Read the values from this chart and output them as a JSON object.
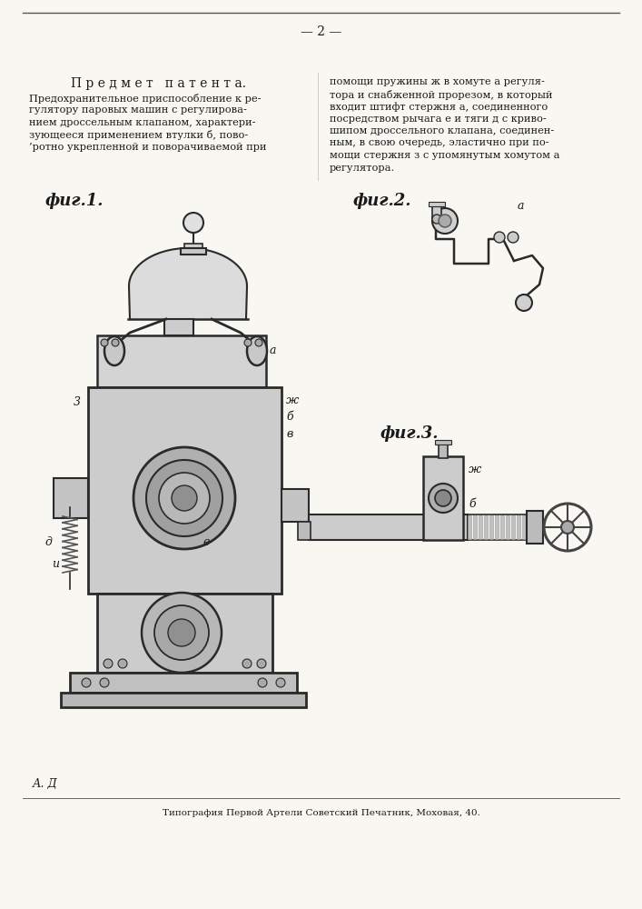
{
  "page_number": "— 2 —",
  "title": "П р е д м е т   п а т е н т а.",
  "left_col_lines": [
    "Предохранительное приспособление к ре-",
    "гулятору паровых машин с регулирова-",
    "нием дроссельным клапаном, характери-",
    "зующееся применением втулки б, пово-",
    "’ротно укрепленной и поворачиваемой при"
  ],
  "right_col_lines": [
    "помощи пружины ж в хомуте а регуля-",
    "тора и снабженной прорезом, в который",
    "входит штифт стержня а, соединенного",
    "посредством рычага е и тяги д с криво-",
    "шипом дроссельного клапана, соединен-",
    "ным, в свою очередь, эластично при по-",
    "мощи стержня з с упомянутым хомутом а",
    "регулятора."
  ],
  "fig1_label": "фиг.1.",
  "fig2_label": "фиг.2.",
  "fig3_label": "фиг.3.",
  "author": "А. Д",
  "footer": "Типография Первой Артели Советский Печатник, Моховая, 40.",
  "bg_color": "#f8f7f2",
  "text_color": "#1a1a1a",
  "line_color": "#2a2a2a",
  "mid_gray": "#b8b8b8",
  "dark_gray": "#888888",
  "light_gray": "#d8d8d8"
}
